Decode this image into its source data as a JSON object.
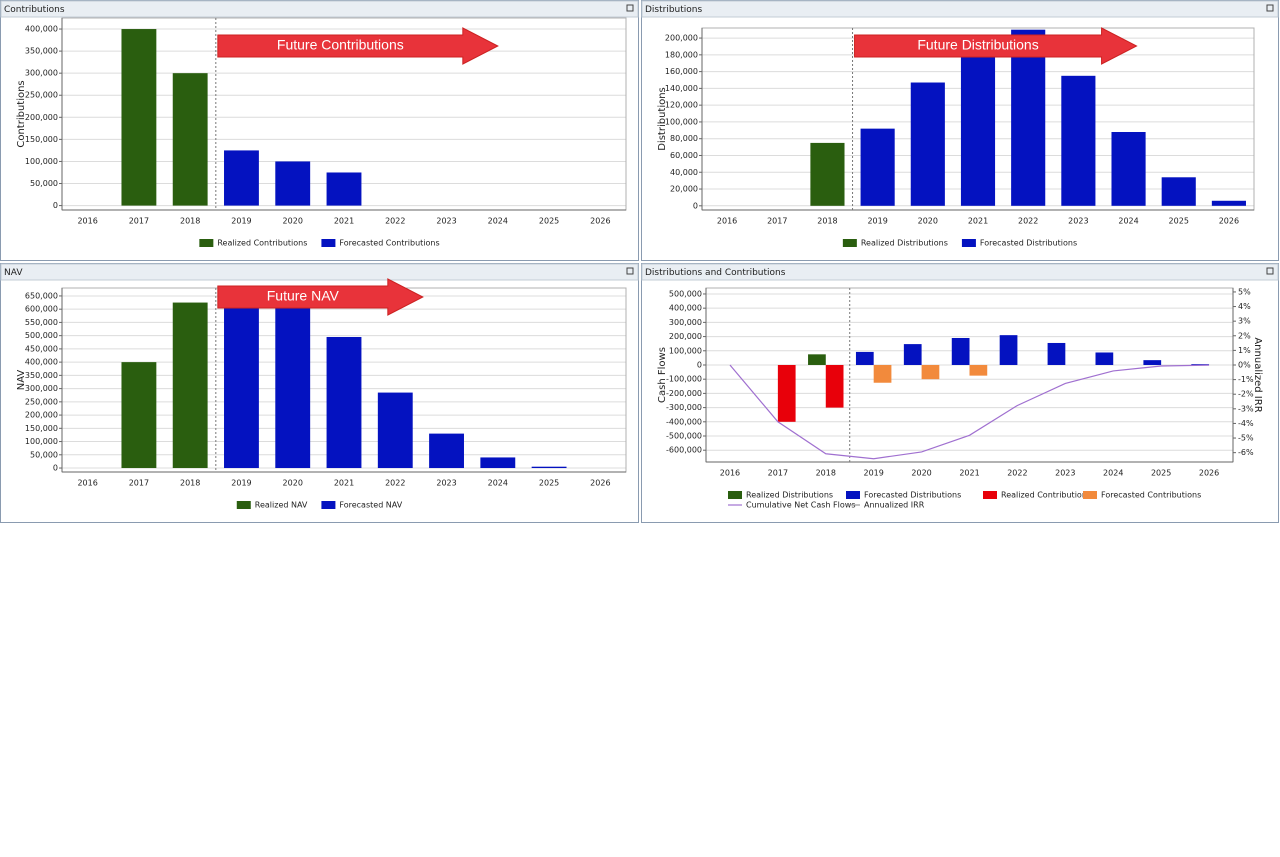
{
  "chart_data": [
    {
      "type": "bar",
      "title": "Contributions",
      "ylabel": "Contributions",
      "annotation": "Future Contributions",
      "categories": [
        "2016",
        "2017",
        "2018",
        "2019",
        "2020",
        "2021",
        "2022",
        "2023",
        "2024",
        "2025",
        "2026"
      ],
      "series": [
        {
          "name": "Realized Contributions",
          "type": "bar",
          "color": "#2a5e0f",
          "values": [
            null,
            400000,
            300000,
            null,
            null,
            null,
            null,
            null,
            null,
            null,
            null
          ]
        },
        {
          "name": "Forecasted Contributions",
          "type": "bar",
          "color": "#0412c0",
          "values": [
            null,
            null,
            null,
            125000,
            100000,
            75000,
            null,
            null,
            null,
            null,
            null
          ]
        }
      ],
      "ylim": [
        -10000,
        425000
      ],
      "yticks": [
        0,
        {
          "value": 50000,
          "label": "50,000"
        },
        {
          "value": 100000,
          "label": "100,000"
        },
        {
          "value": 150000,
          "label": "150,000"
        },
        {
          "value": 200000,
          "label": "200,000"
        },
        {
          "value": 250000,
          "label": "250,000"
        },
        {
          "value": 300000,
          "label": "300,000"
        },
        {
          "value": 350000,
          "label": "350,000"
        },
        {
          "value": 400000,
          "label": "400,000"
        }
      ],
      "grid": true
    },
    {
      "type": "bar",
      "title": "Distributions",
      "ylabel": "Distributions",
      "annotation": "Future Distributions",
      "categories": [
        "2016",
        "2017",
        "2018",
        "2019",
        "2020",
        "2021",
        "2022",
        "2023",
        "2024",
        "2025",
        "2026"
      ],
      "series": [
        {
          "name": "Realized Distributions",
          "type": "bar",
          "color": "#2a5e0f",
          "values": [
            null,
            null,
            75000,
            null,
            null,
            null,
            null,
            null,
            null,
            null,
            null
          ]
        },
        {
          "name": "Forecasted Distributions",
          "type": "bar",
          "color": "#0412c0",
          "values": [
            null,
            null,
            null,
            92000,
            147000,
            190000,
            210000,
            155000,
            88000,
            34000,
            6000
          ]
        }
      ],
      "ylim": [
        -5000,
        212000
      ],
      "yticks": [
        0,
        {
          "value": 20000,
          "label": "20,000"
        },
        {
          "value": 40000,
          "label": "40,000"
        },
        {
          "value": 60000,
          "label": "60,000"
        },
        {
          "value": 80000,
          "label": "80,000"
        },
        {
          "value": 100000,
          "label": "100,000"
        },
        {
          "value": 120000,
          "label": "120,000"
        },
        {
          "value": 140000,
          "label": "140,000"
        },
        {
          "value": 160000,
          "label": "160,000"
        },
        {
          "value": 180000,
          "label": "180,000"
        },
        {
          "value": 200000,
          "label": "200,000"
        }
      ],
      "grid": true
    },
    {
      "type": "bar",
      "title": "NAV",
      "ylabel": "NAV",
      "annotation": "Future NAV",
      "categories": [
        "2016",
        "2017",
        "2018",
        "2019",
        "2020",
        "2021",
        "2022",
        "2023",
        "2024",
        "2025",
        "2026"
      ],
      "series": [
        {
          "name": "Realized NAV",
          "type": "bar",
          "color": "#2a5e0f",
          "values": [
            null,
            400000,
            625000,
            null,
            null,
            null,
            null,
            null,
            null,
            null,
            null
          ]
        },
        {
          "name": "Forecasted NAV",
          "type": "bar",
          "color": "#0412c0",
          "values": [
            null,
            null,
            null,
            635000,
            615000,
            495000,
            285000,
            130000,
            40000,
            5000,
            null
          ]
        }
      ],
      "ylim": [
        -15000,
        680000
      ],
      "yticks": [
        0,
        {
          "value": 50000,
          "label": "50,000"
        },
        {
          "value": 100000,
          "label": "100,000"
        },
        {
          "value": 150000,
          "label": "150,000"
        },
        {
          "value": 200000,
          "label": "200,000"
        },
        {
          "value": 250000,
          "label": "250,000"
        },
        {
          "value": 300000,
          "label": "300,000"
        },
        {
          "value": 350000,
          "label": "350,000"
        },
        {
          "value": 400000,
          "label": "400,000"
        },
        {
          "value": 450000,
          "label": "450,000"
        },
        {
          "value": 500000,
          "label": "500,000"
        },
        {
          "value": 550000,
          "label": "550,000"
        },
        {
          "value": 600000,
          "label": "600,000"
        },
        {
          "value": 650000,
          "label": "650,000"
        }
      ],
      "grid": true
    },
    {
      "type": "bar",
      "title": "Distributions and Contributions",
      "ylabel": "Cash Flows",
      "y2label": "Annualized IRR",
      "categories": [
        "2016",
        "2017",
        "2018",
        "2019",
        "2020",
        "2021",
        "2022",
        "2023",
        "2024",
        "2025",
        "2026"
      ],
      "series": [
        {
          "name": "Realized Distributions",
          "type": "bar",
          "color": "#2a5e0f",
          "values": [
            null,
            null,
            75000,
            null,
            null,
            null,
            null,
            null,
            null,
            null,
            null
          ]
        },
        {
          "name": "Forecasted Distributions",
          "type": "bar",
          "color": "#0412c0",
          "values": [
            null,
            null,
            null,
            92000,
            147000,
            190000,
            210000,
            155000,
            88000,
            34000,
            6000
          ]
        },
        {
          "name": "Realized Contributions",
          "type": "bar",
          "color": "#e8000a",
          "values": [
            null,
            -400000,
            -300000,
            null,
            null,
            null,
            null,
            null,
            null,
            null,
            null
          ]
        },
        {
          "name": "Forecasted Contributions",
          "type": "bar",
          "color": "#f28a3c",
          "values": [
            null,
            null,
            null,
            -125000,
            -100000,
            -75000,
            null,
            null,
            null,
            null,
            null
          ]
        },
        {
          "name": "Cumulative Net Cash Flows",
          "type": "line",
          "color": "#a070d0",
          "values": [
            0,
            -400000,
            -625000,
            -660000,
            -612000,
            -495000,
            -285000,
            -130000,
            -42000,
            -7000,
            -1000
          ]
        },
        {
          "name": "Annualized IRR",
          "type": "line",
          "axis": "y2",
          "color": "#999999",
          "values": [
            null,
            null,
            null,
            null,
            null,
            null,
            null,
            null,
            null,
            null,
            null
          ]
        }
      ],
      "ylim": [
        -683000,
        542000
      ],
      "yticks": [
        {
          "value": -600000,
          "label": "-600,000"
        },
        {
          "value": -500000,
          "label": "-500,000"
        },
        {
          "value": -400000,
          "label": "-400,000"
        },
        {
          "value": -300000,
          "label": "-300,000"
        },
        {
          "value": -200000,
          "label": "-200,000"
        },
        {
          "value": -100000,
          "label": "-100,000"
        },
        0,
        {
          "value": 100000,
          "label": "100,000"
        },
        {
          "value": 200000,
          "label": "200,000"
        },
        {
          "value": 300000,
          "label": "300,000"
        },
        {
          "value": 400000,
          "label": "400,000"
        },
        {
          "value": 500000,
          "label": "500,000"
        }
      ],
      "y2lim": [
        -6.64,
        5.27
      ],
      "y2ticks": [
        {
          "value": -6,
          "label": "-6%"
        },
        {
          "value": -5,
          "label": "-5%"
        },
        {
          "value": -4,
          "label": "-4%"
        },
        {
          "value": -3,
          "label": "-3%"
        },
        {
          "value": -2,
          "label": "-2%"
        },
        {
          "value": -1,
          "label": "-1%"
        },
        {
          "value": 0,
          "label": "0%"
        },
        {
          "value": 1,
          "label": "1%"
        },
        {
          "value": 2,
          "label": "2%"
        },
        {
          "value": 3,
          "label": "3%"
        },
        {
          "value": 4,
          "label": "4%"
        },
        {
          "value": 5,
          "label": "5%"
        }
      ],
      "grid": true
    }
  ]
}
